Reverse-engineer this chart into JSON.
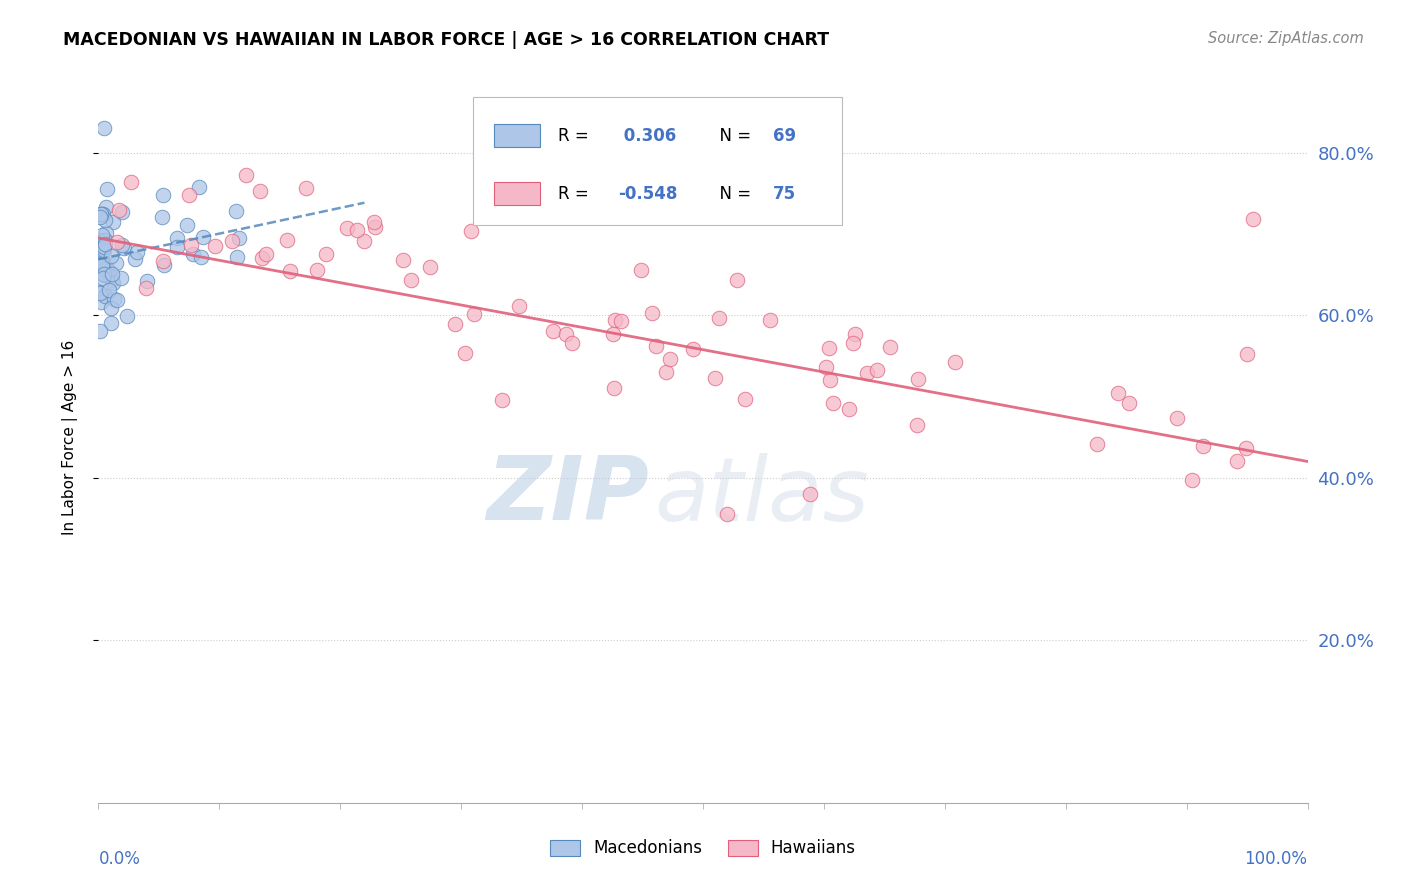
{
  "title": "MACEDONIAN VS HAWAIIAN IN LABOR FORCE | AGE > 16 CORRELATION CHART",
  "source": "Source: ZipAtlas.com",
  "ylabel": "In Labor Force | Age > 16",
  "watermark_zip": "ZIP",
  "watermark_atlas": "atlas",
  "macedonian_R": 0.306,
  "macedonian_N": 69,
  "hawaiian_R": -0.548,
  "hawaiian_N": 75,
  "macedonian_color": "#aec6e8",
  "hawaiian_color": "#f4b8c8",
  "macedonian_line_color": "#5588bb",
  "hawaiian_line_color": "#e0607a",
  "legend_macedonians": "Macedonians",
  "legend_hawaiians": "Hawaiians",
  "ylim_low": 0.0,
  "ylim_high": 0.9,
  "xlim_low": 0.0,
  "xlim_high": 1.0
}
